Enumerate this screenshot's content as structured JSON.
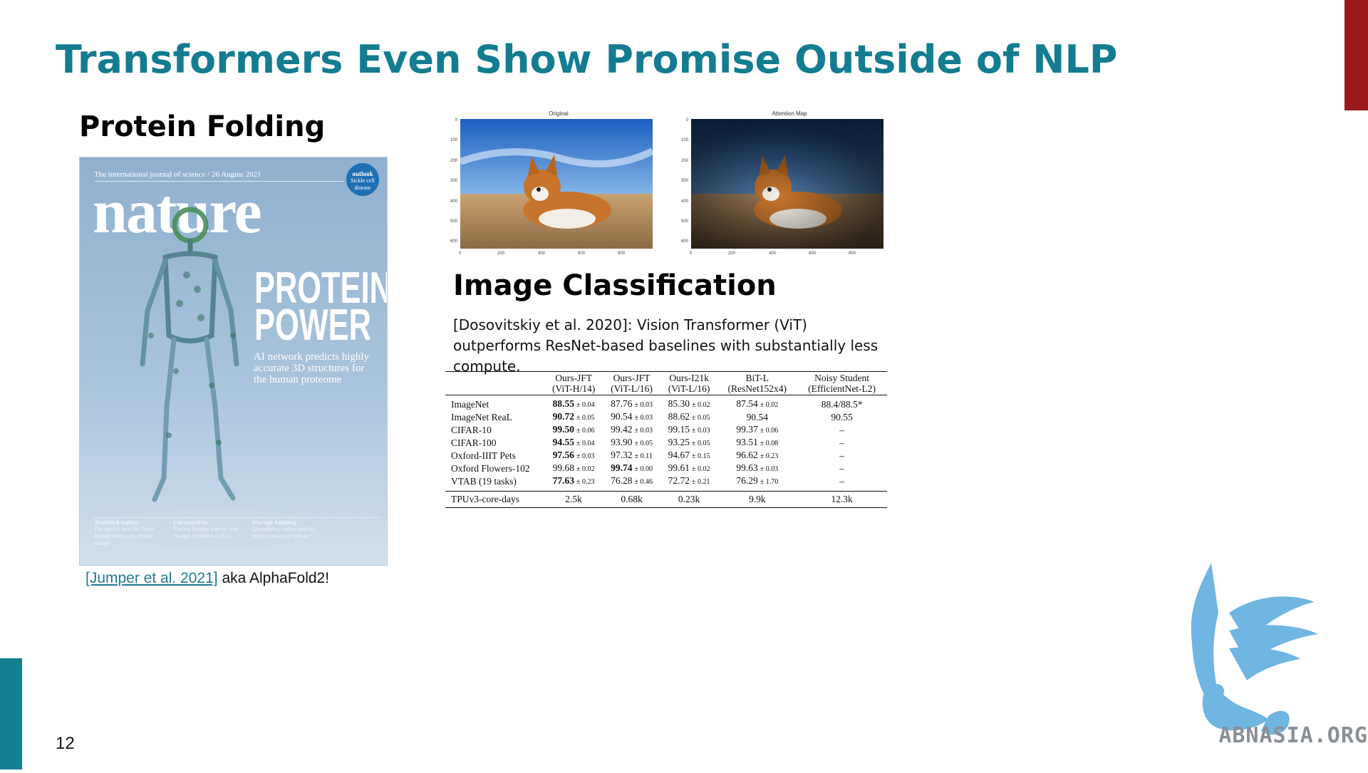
{
  "slide": {
    "title": "Transformers Even Show Promise Outside of NLP",
    "number": "12",
    "colors": {
      "title": "#137c91",
      "accent_left": "#12808f",
      "accent_right": "#9b1b1b"
    }
  },
  "protein": {
    "heading": "Protein Folding",
    "cover": {
      "tagline": "The international journal of science / 26 August 2021",
      "masthead": "nature",
      "badge_title": "outlook",
      "badge_text": "Sickle cell disease",
      "headline_line1": "PROTEIN",
      "headline_line2": "POWER",
      "subhead": "AI network predicts highly accurate 3D structures for the human proteome",
      "footer": [
        {
          "title": "Troubled waters",
          "text": "The race to save the Great Barrier Reef from climate change"
        },
        {
          "title": "Coronavirus",
          "text": "Tracing binding sites in viral changes of SARS-CoV-2"
        },
        {
          "title": "Storage hunting",
          "text": "Quantifying carbon held in Africa's montane forests"
        }
      ]
    },
    "citation_link": "[Jumper et al. 2021]",
    "citation_rest": " aka AlphaFold2!"
  },
  "vit": {
    "plots": [
      {
        "title": "Original",
        "yticks": [
          "0",
          "100",
          "200",
          "300",
          "400",
          "500",
          "600"
        ],
        "xticks": [
          "0",
          "200",
          "400",
          "600",
          "800"
        ]
      },
      {
        "title": "Attention Map",
        "yticks": [
          "0",
          "100",
          "200",
          "300",
          "400",
          "500",
          "600"
        ],
        "xticks": [
          "0",
          "200",
          "400",
          "600",
          "800"
        ]
      }
    ],
    "heading": "Image Classification",
    "description": "[Dosovitskiy et al. 2020]: Vision Transformer (ViT) outperforms ResNet-based baselines with substantially less compute.",
    "table": {
      "headers": [
        {
          "l1": "",
          "l2": ""
        },
        {
          "l1": "Ours-JFT",
          "l2": "(ViT-H/14)"
        },
        {
          "l1": "Ours-JFT",
          "l2": "(ViT-L/16)"
        },
        {
          "l1": "Ours-I21k",
          "l2": "(ViT-L/16)"
        },
        {
          "l1": "BiT-L",
          "l2": "(ResNet152x4)"
        },
        {
          "l1": "Noisy Student",
          "l2": "(EfficientNet-L2)"
        }
      ],
      "rows": [
        {
          "label": "ImageNet",
          "cells": [
            {
              "v": "88.55",
              "e": "± 0.04",
              "b": true
            },
            {
              "v": "87.76",
              "e": "± 0.03"
            },
            {
              "v": "85.30",
              "e": "± 0.02"
            },
            {
              "v": "87.54",
              "e": "± 0.02"
            },
            {
              "v": "88.4/88.5*",
              "e": ""
            }
          ]
        },
        {
          "label": "ImageNet ReaL",
          "cells": [
            {
              "v": "90.72",
              "e": "± 0.05",
              "b": true
            },
            {
              "v": "90.54",
              "e": "± 0.03"
            },
            {
              "v": "88.62",
              "e": "± 0.05"
            },
            {
              "v": "90.54",
              "e": ""
            },
            {
              "v": "90.55",
              "e": ""
            }
          ]
        },
        {
          "label": "CIFAR-10",
          "cells": [
            {
              "v": "99.50",
              "e": "± 0.06",
              "b": true
            },
            {
              "v": "99.42",
              "e": "± 0.03"
            },
            {
              "v": "99.15",
              "e": "± 0.03"
            },
            {
              "v": "99.37",
              "e": "± 0.06"
            },
            {
              "v": "–",
              "e": ""
            }
          ]
        },
        {
          "label": "CIFAR-100",
          "cells": [
            {
              "v": "94.55",
              "e": "± 0.04",
              "b": true
            },
            {
              "v": "93.90",
              "e": "± 0.05"
            },
            {
              "v": "93.25",
              "e": "± 0.05"
            },
            {
              "v": "93.51",
              "e": "± 0.08"
            },
            {
              "v": "–",
              "e": ""
            }
          ]
        },
        {
          "label": "Oxford-IIIT Pets",
          "cells": [
            {
              "v": "97.56",
              "e": "± 0.03",
              "b": true
            },
            {
              "v": "97.32",
              "e": "± 0.11"
            },
            {
              "v": "94.67",
              "e": "± 0.15"
            },
            {
              "v": "96.62",
              "e": "± 0.23"
            },
            {
              "v": "–",
              "e": ""
            }
          ]
        },
        {
          "label": "Oxford Flowers-102",
          "cells": [
            {
              "v": "99.68",
              "e": "± 0.02"
            },
            {
              "v": "99.74",
              "e": "± 0.00",
              "b": true
            },
            {
              "v": "99.61",
              "e": "± 0.02"
            },
            {
              "v": "99.63",
              "e": "± 0.03"
            },
            {
              "v": "–",
              "e": ""
            }
          ]
        },
        {
          "label": "VTAB (19 tasks)",
          "cells": [
            {
              "v": "77.63",
              "e": "± 0.23",
              "b": true
            },
            {
              "v": "76.28",
              "e": "± 0.46"
            },
            {
              "v": "72.72",
              "e": "± 0.21"
            },
            {
              "v": "76.29",
              "e": "± 1.70"
            },
            {
              "v": "–",
              "e": ""
            }
          ]
        }
      ],
      "footer_row": {
        "label": "TPUv3-core-days",
        "cells": [
          "2.5k",
          "0.68k",
          "0.23k",
          "9.9k",
          "12.3k"
        ]
      }
    }
  },
  "logo": {
    "text": "ABNASIA.ORG",
    "color": "#6fb6e2"
  }
}
